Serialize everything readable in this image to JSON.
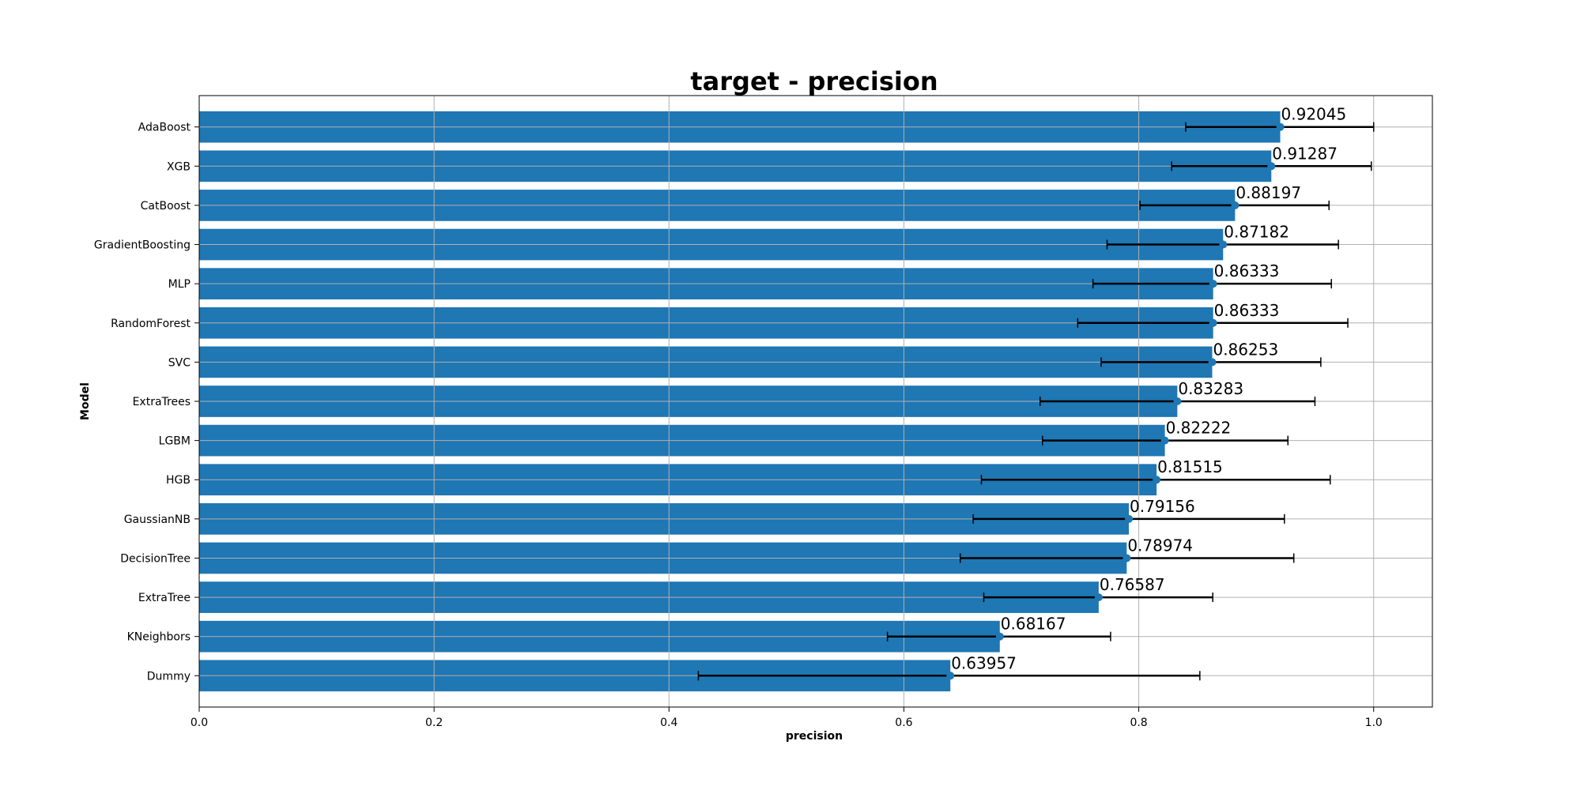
{
  "chart_data": {
    "type": "bar",
    "orientation": "horizontal",
    "title": "target - precision",
    "xlabel": "precision",
    "ylabel": "Model",
    "xlim": [
      0.0,
      1.05
    ],
    "xticks": [
      0.0,
      0.2,
      0.4,
      0.6,
      0.8,
      1.0
    ],
    "xtick_labels": [
      "0.0",
      "0.2",
      "0.4",
      "0.6",
      "0.8",
      "1.0"
    ],
    "grid": true,
    "bar_color": "#1f77b4",
    "marker_color": "#1f77b4",
    "errorbar_color": "#000000",
    "categories": [
      "AdaBoost",
      "XGB",
      "CatBoost",
      "GradientBoosting",
      "MLP",
      "RandomForest",
      "SVC",
      "ExtraTrees",
      "LGBM",
      "HGB",
      "GaussianNB",
      "DecisionTree",
      "ExtraTree",
      "KNeighbors",
      "Dummy"
    ],
    "values": [
      0.92045,
      0.91287,
      0.88197,
      0.87182,
      0.86333,
      0.86333,
      0.86253,
      0.83283,
      0.82222,
      0.81515,
      0.79156,
      0.78974,
      0.76587,
      0.68167,
      0.63957
    ],
    "value_labels": [
      "0.92045",
      "0.91287",
      "0.88197",
      "0.87182",
      "0.86333",
      "0.86333",
      "0.86253",
      "0.83283",
      "0.82222",
      "0.81515",
      "0.79156",
      "0.78974",
      "0.76587",
      "0.68167",
      "0.63957"
    ],
    "error_low": [
      0.84,
      0.828,
      0.801,
      0.773,
      0.761,
      0.748,
      0.768,
      0.716,
      0.718,
      0.666,
      0.659,
      0.648,
      0.668,
      0.586,
      0.425
    ],
    "error_high": [
      1.0,
      0.998,
      0.962,
      0.97,
      0.964,
      0.978,
      0.955,
      0.95,
      0.927,
      0.963,
      0.924,
      0.932,
      0.863,
      0.776,
      0.852
    ]
  }
}
